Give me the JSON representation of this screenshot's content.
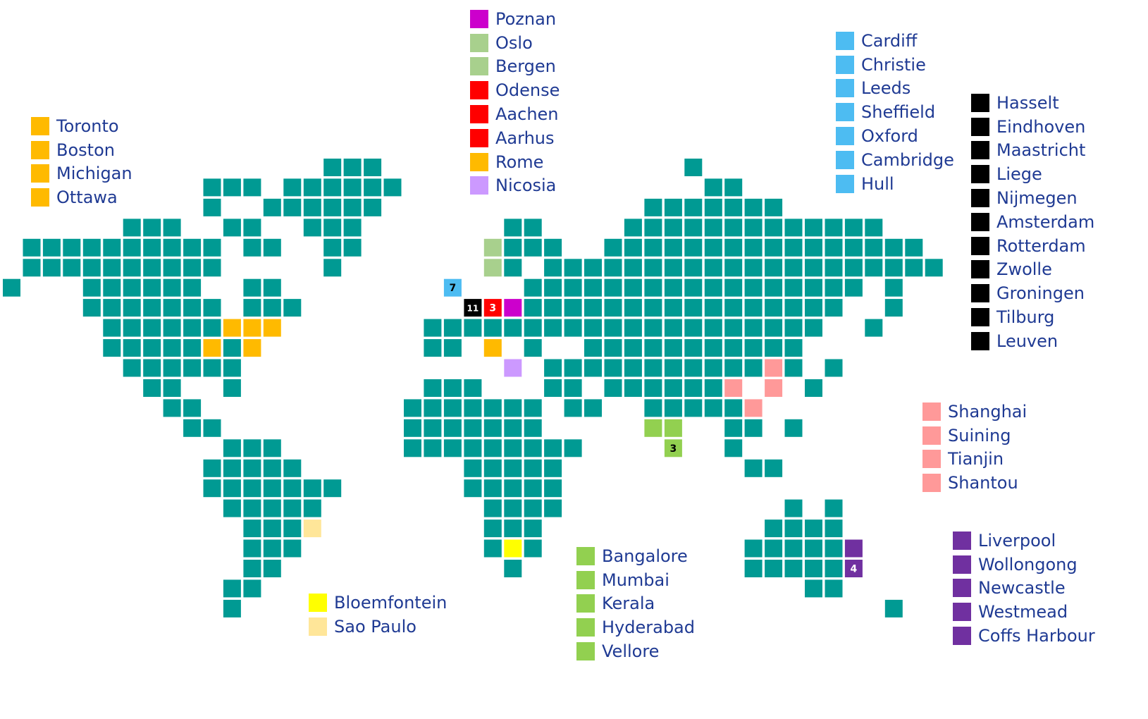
{
  "colors": {
    "land": "#009a93",
    "legend_text": "#1f3a93",
    "north_america": "#ffba00",
    "poland": "#cc00cc",
    "norway": "#a8d08d",
    "denmark_germany": "#ff0000",
    "cyprus": "#cc99ff",
    "uk": "#4dbcf2",
    "netherlands_belgium": "#000000",
    "china": "#ff9999",
    "india": "#92d050",
    "south_africa": "#ffff00",
    "brazil": "#ffe699",
    "australia": "#7030a0"
  },
  "legends": {
    "north_america": {
      "color": "#ffba00",
      "items": [
        "Toronto",
        "Boston",
        "Michigan",
        "Ottawa"
      ]
    },
    "europe": {
      "items": [
        {
          "label": "Poznan",
          "color": "#cc00cc"
        },
        {
          "label": "Oslo",
          "color": "#a8d08d"
        },
        {
          "label": "Bergen",
          "color": "#a8d08d"
        },
        {
          "label": "Odense",
          "color": "#ff0000"
        },
        {
          "label": "Aachen",
          "color": "#ff0000"
        },
        {
          "label": "Aarhus",
          "color": "#ff0000"
        },
        {
          "label": "Rome",
          "color": "#ffba00"
        },
        {
          "label": "Nicosia",
          "color": "#cc99ff"
        }
      ]
    },
    "uk": {
      "color": "#4dbcf2",
      "items": [
        "Cardiff",
        "Christie",
        "Leeds",
        "Sheffield",
        "Oxford",
        "Cambridge",
        "Hull"
      ]
    },
    "benelux": {
      "color": "#000000",
      "items": [
        "Hasselt",
        "Eindhoven",
        "Maastricht",
        "Liege",
        "Nijmegen",
        "Amsterdam",
        "Rotterdam",
        "Zwolle",
        "Groningen",
        "Tilburg",
        "Leuven"
      ]
    },
    "china": {
      "color": "#ff9999",
      "items": [
        "Shanghai",
        "Suining",
        "Tianjin",
        "Shantou"
      ]
    },
    "australia": {
      "color": "#7030a0",
      "items": [
        "Liverpool",
        "Wollongong",
        "Newcastle",
        "Westmead",
        "Coffs Harbour"
      ]
    },
    "india": {
      "color": "#92d050",
      "items": [
        "Bangalore",
        "Mumbai",
        "Kerala",
        "Hyderabad",
        "Vellore"
      ]
    },
    "south_america_africa": {
      "items": [
        {
          "label": "Bloemfontein",
          "color": "#ffff00"
        },
        {
          "label": "Sao Paulo",
          "color": "#ffe699"
        }
      ]
    }
  },
  "map_counts": {
    "uk": "7",
    "benelux": "11",
    "denmark_germany": "3",
    "india": "3",
    "australia": "4"
  }
}
